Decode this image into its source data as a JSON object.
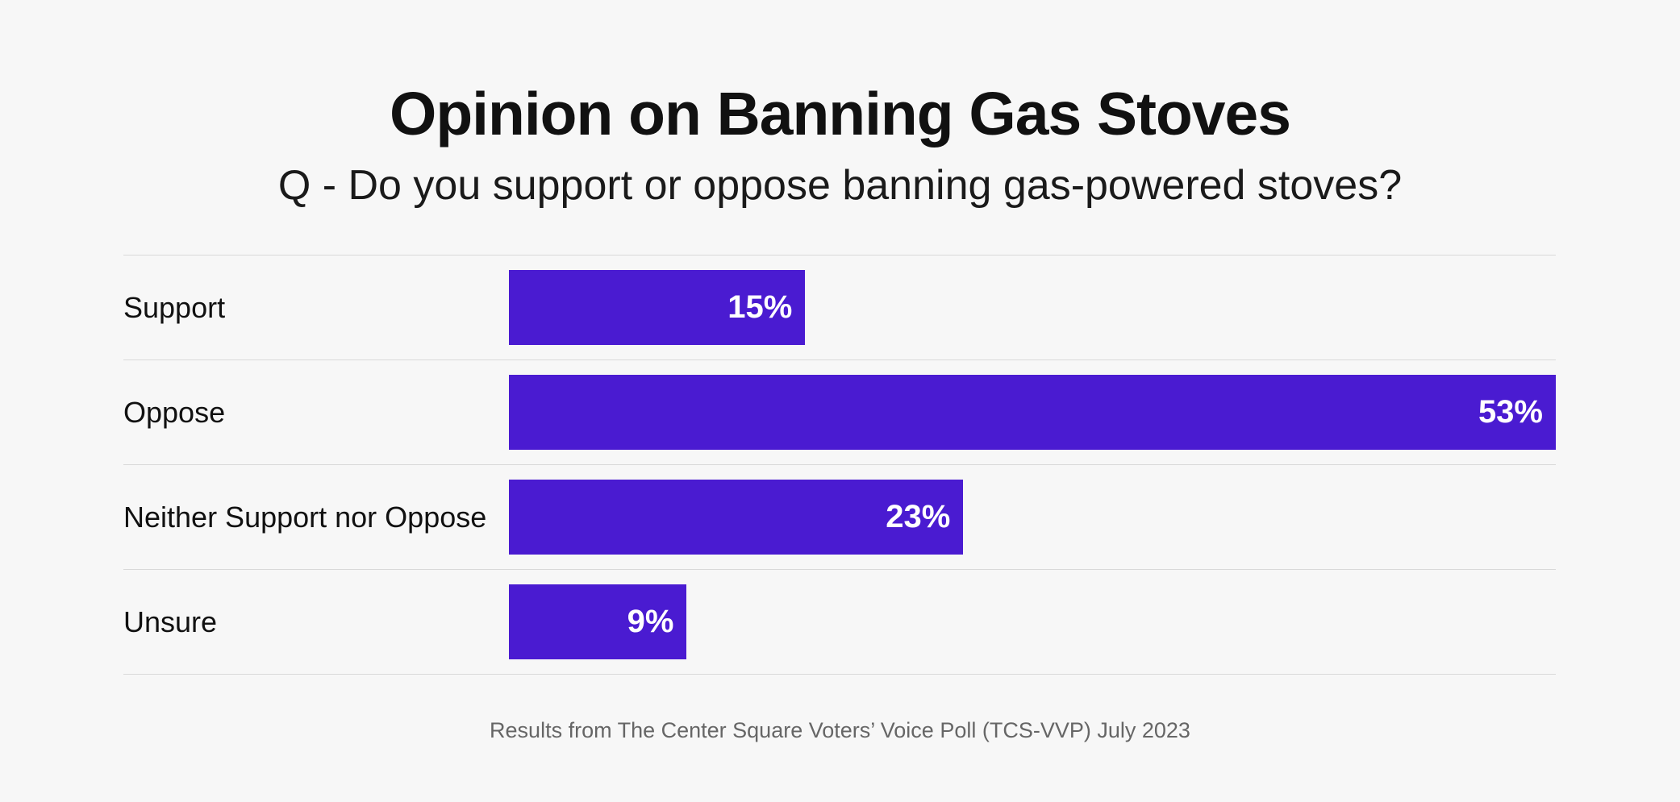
{
  "chart_data": {
    "type": "bar",
    "orientation": "horizontal",
    "title": "Opinion on Banning Gas Stoves",
    "subtitle": "Q - Do you support or oppose banning gas-powered stoves?",
    "source_note": "Results from The Center Square Voters’ Voice Poll (TCS-VVP) July 2023",
    "categories": [
      "Support",
      "Oppose",
      "Neither Support nor Oppose",
      "Unsure"
    ],
    "values": [
      15,
      53,
      23,
      9
    ],
    "value_labels": [
      "15%",
      "53%",
      "23%",
      "9%"
    ],
    "unit": "%",
    "xlim": [
      0,
      53
    ],
    "axes_hidden": true,
    "grid": "horizontal row dividers only",
    "legend": "none",
    "colors": {
      "bar": "#4A1BD1",
      "background": "#f7f7f7",
      "divider": "#d9d9d9",
      "title_text": "#111111",
      "value_text": "#ffffff",
      "source_text": "#666666"
    }
  }
}
